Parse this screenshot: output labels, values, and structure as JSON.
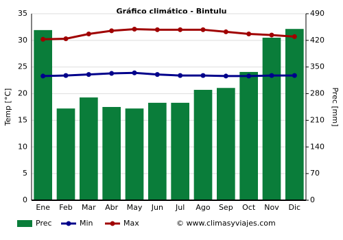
{
  "chart_data": {
    "type": "combo",
    "title": "Gráfico climático - Bintulu",
    "categories": [
      "Ene",
      "Feb",
      "Mar",
      "Abr",
      "May",
      "Jun",
      "Jul",
      "Ago",
      "Sep",
      "Oct",
      "Nov",
      "Dic"
    ],
    "y_label": "Temp [°C]",
    "y2_label": "Prec [mm]",
    "ylim": [
      0,
      35
    ],
    "yticks": [
      0,
      5,
      10,
      15,
      20,
      25,
      30,
      35
    ],
    "y2lim": [
      0,
      490
    ],
    "y2ticks": [
      0,
      70,
      140,
      210,
      280,
      350,
      420,
      490
    ],
    "grid": true,
    "legend": "bottom",
    "source": "© www.climasyviajes.com",
    "series": [
      {
        "name": "Prec",
        "type": "bar",
        "axis": "y2",
        "color": "#0a7d3a",
        "values": [
          447,
          241,
          270,
          245,
          241,
          256,
          256,
          290,
          295,
          337,
          427,
          450
        ]
      },
      {
        "name": "Min",
        "type": "line",
        "color": "#00008b",
        "values": [
          23.3,
          23.4,
          23.6,
          23.8,
          23.9,
          23.6,
          23.4,
          23.4,
          23.3,
          23.3,
          23.4,
          23.4
        ]
      },
      {
        "name": "Max",
        "type": "line",
        "color": "#a00000",
        "values": [
          30.2,
          30.3,
          31.2,
          31.8,
          32.1,
          32.0,
          32.0,
          32.0,
          31.6,
          31.2,
          31.0,
          30.7
        ]
      }
    ]
  }
}
